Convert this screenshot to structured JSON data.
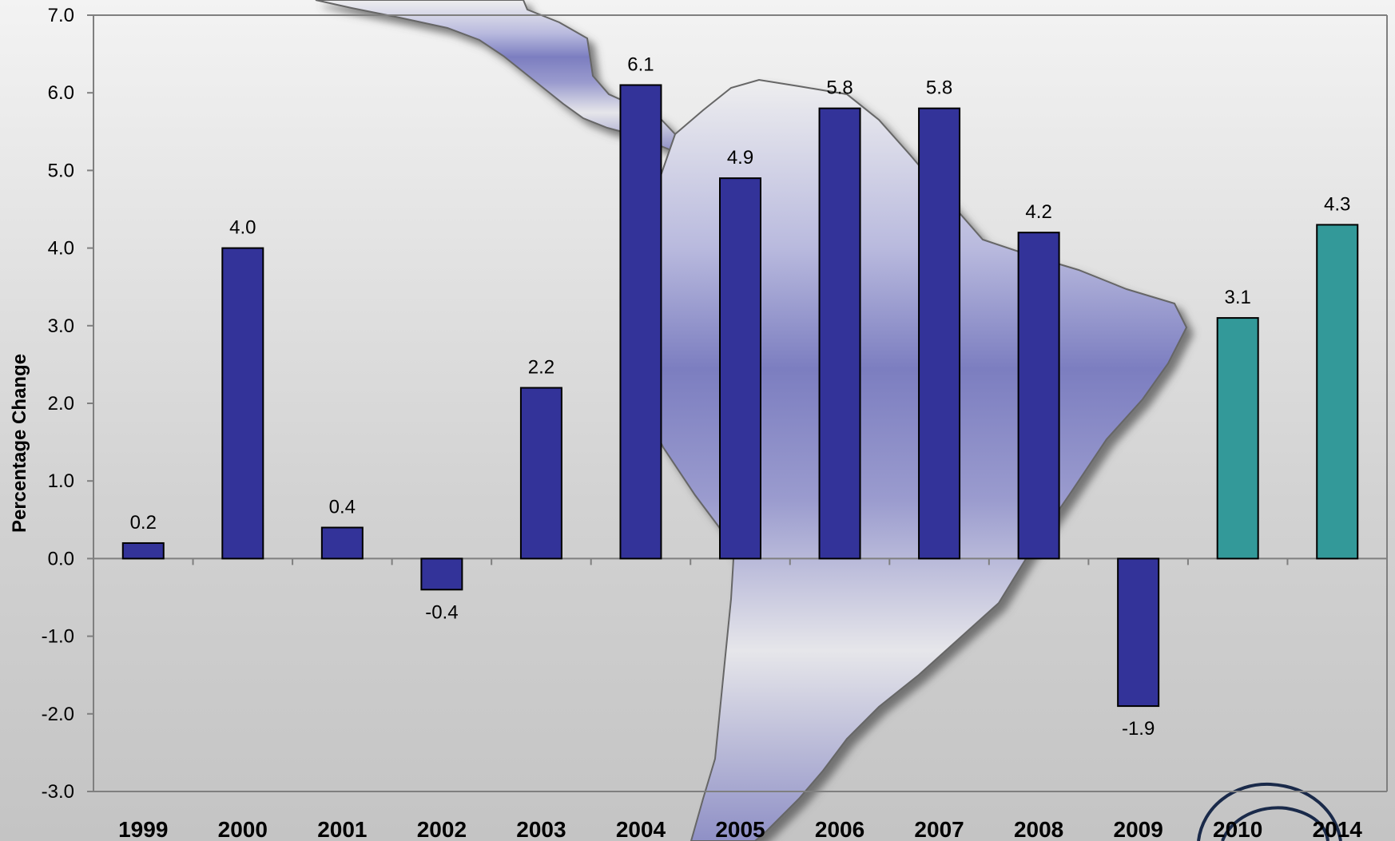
{
  "chart_data": {
    "type": "bar",
    "title": "",
    "xlabel": "",
    "ylabel": "Percentage Change",
    "ylim": [
      -3.0,
      7.0
    ],
    "ytick_step": 1.0,
    "grid": false,
    "legend": "none",
    "categories": [
      "1999",
      "2000",
      "2001",
      "2002",
      "2003",
      "2004",
      "2005",
      "2006",
      "2007",
      "2008",
      "2009",
      "2010",
      "2014"
    ],
    "values": [
      0.2,
      4.0,
      0.4,
      -0.4,
      2.2,
      6.1,
      4.9,
      5.8,
      5.8,
      4.2,
      -1.9,
      3.1,
      4.3
    ],
    "data_labels": [
      "0.2",
      "4.0",
      "0.4",
      "-0.4",
      "2.2",
      "6.1",
      "4.9",
      "5.8",
      "5.8",
      "4.2",
      "-1.9",
      "3.1",
      "4.3"
    ],
    "bar_colors": [
      "#333399",
      "#333399",
      "#333399",
      "#333399",
      "#333399",
      "#333399",
      "#333399",
      "#333399",
      "#333399",
      "#333399",
      "#333399",
      "#339999",
      "#339999"
    ],
    "y_tick_labels": [
      "-3.0",
      "-2.0",
      "-1.0",
      "0.0",
      "1.0",
      "2.0",
      "3.0",
      "4.0",
      "5.0",
      "6.0",
      "7.0"
    ]
  },
  "colors": {
    "historical_bar": "#333399",
    "projection_bar": "#339999",
    "bar_outline": "#000000",
    "axis": "#7f7f7f",
    "map_fill": "#7c7ec0",
    "background": "#d9d9d9"
  }
}
